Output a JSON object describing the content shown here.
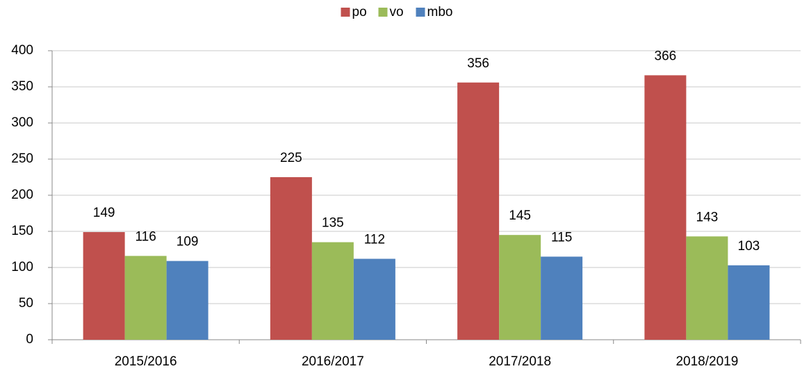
{
  "chart_data": {
    "type": "bar",
    "categories": [
      "2015/2016",
      "2016/2017",
      "2017/2018",
      "2018/2019"
    ],
    "series": [
      {
        "name": "po",
        "color": "#c0504d",
        "values": [
          149,
          225,
          356,
          366
        ]
      },
      {
        "name": "vo",
        "color": "#9bbb59",
        "values": [
          116,
          135,
          145,
          143
        ]
      },
      {
        "name": "mbo",
        "color": "#4f81bd",
        "values": [
          109,
          112,
          115,
          103
        ]
      }
    ],
    "ylim": [
      0,
      400
    ],
    "yticks": [
      0,
      50,
      100,
      150,
      200,
      250,
      300,
      350,
      400
    ],
    "grid": true,
    "legend": "top"
  }
}
